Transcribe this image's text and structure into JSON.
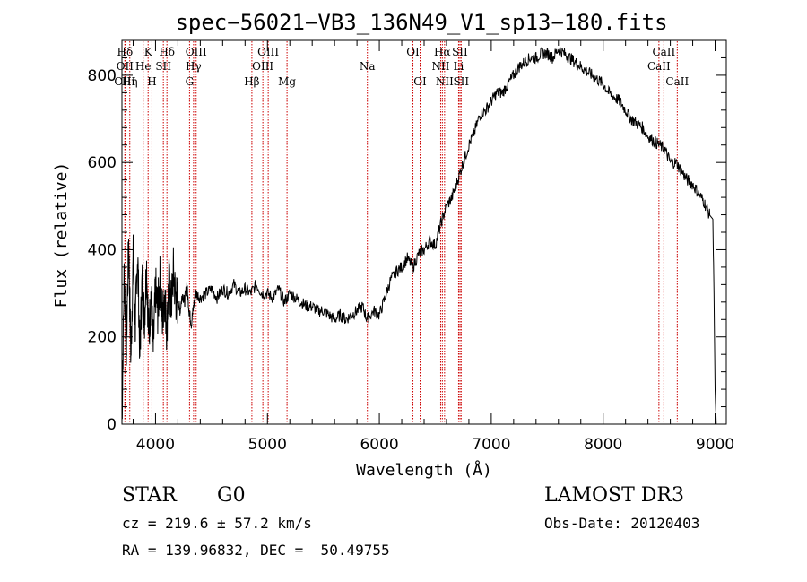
{
  "chart_data": {
    "type": "line",
    "title": "spec−56021−VB3_136N49_V1_sp13−180.fits",
    "xlabel": "Wavelength (Å)",
    "ylabel": "Flux (relative)",
    "xlim": [
      3700,
      9100
    ],
    "ylim": [
      0,
      880
    ],
    "x_ticks": [
      4000,
      5000,
      6000,
      7000,
      8000,
      9000
    ],
    "y_ticks": [
      0,
      200,
      400,
      600,
      800
    ],
    "series": [
      {
        "name": "flux",
        "x": [
          3700,
          3720,
          3740,
          3760,
          3780,
          3800,
          3820,
          3840,
          3860,
          3880,
          3900,
          3920,
          3940,
          3960,
          3980,
          4000,
          4020,
          4040,
          4060,
          4080,
          4100,
          4120,
          4140,
          4160,
          4180,
          4200,
          4220,
          4240,
          4260,
          4280,
          4300,
          4320,
          4340,
          4360,
          4400,
          4450,
          4500,
          4550,
          4600,
          4650,
          4700,
          4750,
          4800,
          4850,
          4900,
          4950,
          5000,
          5050,
          5100,
          5150,
          5200,
          5250,
          5300,
          5350,
          5400,
          5450,
          5500,
          5550,
          5600,
          5650,
          5700,
          5750,
          5800,
          5850,
          5890,
          5950,
          6000,
          6050,
          6100,
          6150,
          6200,
          6250,
          6300,
          6350,
          6400,
          6450,
          6500,
          6550,
          6600,
          6650,
          6700,
          6750,
          6800,
          6850,
          6900,
          6950,
          7000,
          7050,
          7100,
          7150,
          7200,
          7250,
          7300,
          7350,
          7400,
          7450,
          7500,
          7550,
          7600,
          7650,
          7700,
          7750,
          7800,
          7850,
          7900,
          7950,
          8000,
          8050,
          8100,
          8150,
          8200,
          8250,
          8300,
          8350,
          8400,
          8450,
          8500,
          8550,
          8600,
          8650,
          8700,
          8750,
          8800,
          8850,
          8900,
          8950,
          8980,
          8990,
          9000,
          9010
        ],
        "y": [
          0,
          350,
          180,
          420,
          150,
          380,
          220,
          400,
          160,
          330,
          240,
          360,
          200,
          300,
          170,
          310,
          260,
          330,
          240,
          300,
          220,
          330,
          270,
          350,
          290,
          280,
          260,
          300,
          280,
          320,
          260,
          230,
          270,
          300,
          290,
          300,
          310,
          290,
          310,
          300,
          320,
          300,
          310,
          300,
          320,
          300,
          300,
          290,
          310,
          280,
          300,
          290,
          280,
          270,
          270,
          260,
          260,
          250,
          240,
          250,
          240,
          250,
          260,
          270,
          240,
          260,
          250,
          290,
          330,
          350,
          360,
          380,
          360,
          390,
          400,
          420,
          410,
          460,
          500,
          520,
          560,
          600,
          640,
          670,
          710,
          720,
          740,
          760,
          760,
          780,
          800,
          820,
          830,
          840,
          840,
          850,
          850,
          840,
          860,
          850,
          840,
          830,
          820,
          810,
          800,
          790,
          780,
          760,
          750,
          740,
          720,
          700,
          690,
          680,
          660,
          650,
          640,
          630,
          600,
          600,
          580,
          560,
          550,
          530,
          510,
          480,
          470,
          300,
          80,
          0
        ]
      }
    ],
    "lines": [
      {
        "label": "Hδ",
        "x": 3727,
        "row": 1
      },
      {
        "label": "OII",
        "x": 3727,
        "row": 2
      },
      {
        "label": "OIII",
        "x": 3727,
        "row": 3
      },
      {
        "label": "Hη",
        "x": 3770,
        "row": 3
      },
      {
        "label": "K",
        "x": 3934,
        "row": 1
      },
      {
        "label": "He",
        "x": 3890,
        "row": 2
      },
      {
        "label": "SII",
        "x": 4070,
        "row": 2
      },
      {
        "label": "H",
        "x": 3968,
        "row": 3
      },
      {
        "label": "Hδ",
        "x": 4102,
        "row": 1
      },
      {
        "label": "OIII",
        "x": 4363,
        "row": 1
      },
      {
        "label": "Hγ",
        "x": 4340,
        "row": 2
      },
      {
        "label": "G",
        "x": 4304,
        "row": 3
      },
      {
        "label": "OIII",
        "x": 5007,
        "row": 1
      },
      {
        "label": "OIII",
        "x": 4959,
        "row": 2
      },
      {
        "label": "Hβ",
        "x": 4861,
        "row": 3
      },
      {
        "label": "Mg",
        "x": 5175,
        "row": 3
      },
      {
        "label": "Na",
        "x": 5893,
        "row": 2
      },
      {
        "label": "OI",
        "x": 6300,
        "row": 1
      },
      {
        "label": "OI",
        "x": 6364,
        "row": 3
      },
      {
        "label": "Hα",
        "x": 6563,
        "row": 1
      },
      {
        "label": "SII",
        "x": 6720,
        "row": 1
      },
      {
        "label": "NII",
        "x": 6548,
        "row": 2
      },
      {
        "label": "Li",
        "x": 6708,
        "row": 2
      },
      {
        "label": "NII",
        "x": 6583,
        "row": 3
      },
      {
        "label": "SII",
        "x": 6731,
        "row": 3
      },
      {
        "label": "CaII",
        "x": 8542,
        "row": 1
      },
      {
        "label": "CaII",
        "x": 8498,
        "row": 2
      },
      {
        "label": "CaII",
        "x": 8662,
        "row": 3
      }
    ],
    "line_color": "#cc0000"
  },
  "info": {
    "object_class": "STAR",
    "subclass": "G0",
    "survey": "LAMOST DR3",
    "cz": "cz = 219.6 ± 57.2 km/s",
    "obs_date": "Obs-Date: 20120403",
    "coords": "RA = 139.96832, DEC =  50.49755"
  }
}
